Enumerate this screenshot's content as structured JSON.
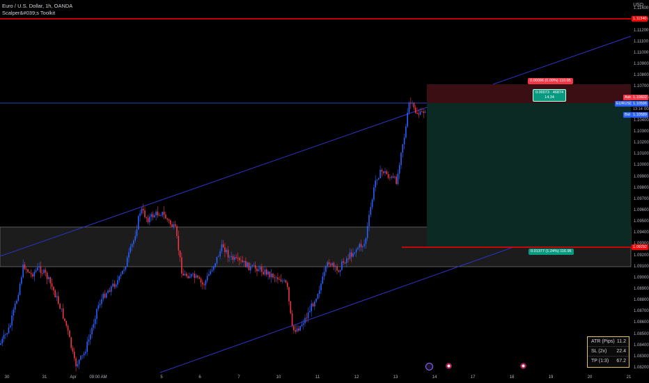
{
  "header": {
    "title": "Euro / U.S. Dollar, 1h, OANDA",
    "indicator": "Scalper&#039;s Toolkit"
  },
  "price_axis": {
    "unit": "USD",
    "ticks": [
      "1.11400",
      "1.11300",
      "1.11200",
      "1.11100",
      "1.11000",
      "1.10900",
      "1.10800",
      "1.10700",
      "1.10600",
      "1.10500",
      "1.10400",
      "1.10300",
      "1.10200",
      "1.10100",
      "1.10000",
      "1.09900",
      "1.09800",
      "1.09700",
      "1.09600",
      "1.09500",
      "1.09400",
      "1.09300",
      "1.09200",
      "1.09100",
      "1.09000",
      "1.08900",
      "1.08800",
      "1.08700",
      "1.08600",
      "1.08500",
      "1.08400",
      "1.08300",
      "1.08200"
    ],
    "tags": {
      "resistance": "1.11340",
      "ask_label": "Ask",
      "ask_value": "1.10602",
      "symbol": "EURUSD",
      "last_price": "1.10596",
      "countdown": "13:14",
      "bid_label": "Bid",
      "bid_value": "1.10589",
      "target": "1.09292"
    }
  },
  "time_axis": {
    "labels": [
      "30",
      "31",
      "Apr",
      "09:00 AM",
      "5",
      "6",
      "7",
      "10",
      "11",
      "12",
      "13",
      "14",
      "17",
      "18",
      "19",
      "20",
      "21"
    ]
  },
  "position": {
    "stop_label": "0.00096 (0.09%) 110.05",
    "entry_label_1": "0.00073 · 46874",
    "entry_label_2": "14.34",
    "target_label": "0.01377 (1.24%) 116.95"
  },
  "atr_panel": {
    "rows": [
      {
        "label": "ATR (Pips)",
        "value": "11.2"
      },
      {
        "label": "SL (2x)",
        "value": "22.4"
      },
      {
        "label": "TP (1:3)",
        "value": "67.2"
      }
    ]
  },
  "colors": {
    "up": "#2962ff",
    "down": "#f23645",
    "level": "#ff0000",
    "channel": "#2a36c8",
    "profit_zone": "#0b2a24",
    "loss_zone": "#3a0e12",
    "atr_border": "#e6c65a"
  }
}
